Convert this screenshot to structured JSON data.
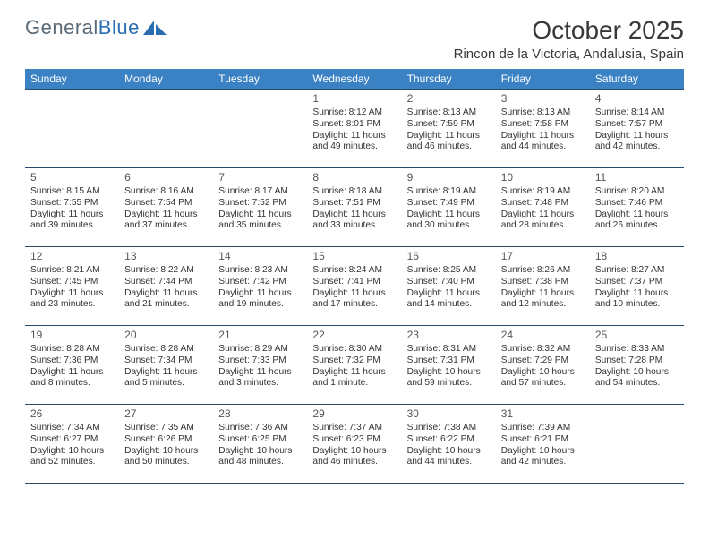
{
  "logo": {
    "text1": "General",
    "text2": "Blue"
  },
  "title": "October 2025",
  "location": "Rincon de la Victoria, Andalusia, Spain",
  "colors": {
    "header_bg": "#3b82c4",
    "header_text": "#ffffff",
    "row_separator": "#2a4a6a",
    "daynum": "#555555",
    "body_text": "#333333",
    "background": "#ffffff",
    "logo_grey": "#5a6a78",
    "logo_blue": "#2a6db0"
  },
  "weekday_headers": [
    "Sunday",
    "Monday",
    "Tuesday",
    "Wednesday",
    "Thursday",
    "Friday",
    "Saturday"
  ],
  "first_weekday_index": 3,
  "days": [
    {
      "n": 1,
      "sunrise": "8:12 AM",
      "sunset": "8:01 PM",
      "daylight": "11 hours and 49 minutes."
    },
    {
      "n": 2,
      "sunrise": "8:13 AM",
      "sunset": "7:59 PM",
      "daylight": "11 hours and 46 minutes."
    },
    {
      "n": 3,
      "sunrise": "8:13 AM",
      "sunset": "7:58 PM",
      "daylight": "11 hours and 44 minutes."
    },
    {
      "n": 4,
      "sunrise": "8:14 AM",
      "sunset": "7:57 PM",
      "daylight": "11 hours and 42 minutes."
    },
    {
      "n": 5,
      "sunrise": "8:15 AM",
      "sunset": "7:55 PM",
      "daylight": "11 hours and 39 minutes."
    },
    {
      "n": 6,
      "sunrise": "8:16 AM",
      "sunset": "7:54 PM",
      "daylight": "11 hours and 37 minutes."
    },
    {
      "n": 7,
      "sunrise": "8:17 AM",
      "sunset": "7:52 PM",
      "daylight": "11 hours and 35 minutes."
    },
    {
      "n": 8,
      "sunrise": "8:18 AM",
      "sunset": "7:51 PM",
      "daylight": "11 hours and 33 minutes."
    },
    {
      "n": 9,
      "sunrise": "8:19 AM",
      "sunset": "7:49 PM",
      "daylight": "11 hours and 30 minutes."
    },
    {
      "n": 10,
      "sunrise": "8:19 AM",
      "sunset": "7:48 PM",
      "daylight": "11 hours and 28 minutes."
    },
    {
      "n": 11,
      "sunrise": "8:20 AM",
      "sunset": "7:46 PM",
      "daylight": "11 hours and 26 minutes."
    },
    {
      "n": 12,
      "sunrise": "8:21 AM",
      "sunset": "7:45 PM",
      "daylight": "11 hours and 23 minutes."
    },
    {
      "n": 13,
      "sunrise": "8:22 AM",
      "sunset": "7:44 PM",
      "daylight": "11 hours and 21 minutes."
    },
    {
      "n": 14,
      "sunrise": "8:23 AM",
      "sunset": "7:42 PM",
      "daylight": "11 hours and 19 minutes."
    },
    {
      "n": 15,
      "sunrise": "8:24 AM",
      "sunset": "7:41 PM",
      "daylight": "11 hours and 17 minutes."
    },
    {
      "n": 16,
      "sunrise": "8:25 AM",
      "sunset": "7:40 PM",
      "daylight": "11 hours and 14 minutes."
    },
    {
      "n": 17,
      "sunrise": "8:26 AM",
      "sunset": "7:38 PM",
      "daylight": "11 hours and 12 minutes."
    },
    {
      "n": 18,
      "sunrise": "8:27 AM",
      "sunset": "7:37 PM",
      "daylight": "11 hours and 10 minutes."
    },
    {
      "n": 19,
      "sunrise": "8:28 AM",
      "sunset": "7:36 PM",
      "daylight": "11 hours and 8 minutes."
    },
    {
      "n": 20,
      "sunrise": "8:28 AM",
      "sunset": "7:34 PM",
      "daylight": "11 hours and 5 minutes."
    },
    {
      "n": 21,
      "sunrise": "8:29 AM",
      "sunset": "7:33 PM",
      "daylight": "11 hours and 3 minutes."
    },
    {
      "n": 22,
      "sunrise": "8:30 AM",
      "sunset": "7:32 PM",
      "daylight": "11 hours and 1 minute."
    },
    {
      "n": 23,
      "sunrise": "8:31 AM",
      "sunset": "7:31 PM",
      "daylight": "10 hours and 59 minutes."
    },
    {
      "n": 24,
      "sunrise": "8:32 AM",
      "sunset": "7:29 PM",
      "daylight": "10 hours and 57 minutes."
    },
    {
      "n": 25,
      "sunrise": "8:33 AM",
      "sunset": "7:28 PM",
      "daylight": "10 hours and 54 minutes."
    },
    {
      "n": 26,
      "sunrise": "7:34 AM",
      "sunset": "6:27 PM",
      "daylight": "10 hours and 52 minutes."
    },
    {
      "n": 27,
      "sunrise": "7:35 AM",
      "sunset": "6:26 PM",
      "daylight": "10 hours and 50 minutes."
    },
    {
      "n": 28,
      "sunrise": "7:36 AM",
      "sunset": "6:25 PM",
      "daylight": "10 hours and 48 minutes."
    },
    {
      "n": 29,
      "sunrise": "7:37 AM",
      "sunset": "6:23 PM",
      "daylight": "10 hours and 46 minutes."
    },
    {
      "n": 30,
      "sunrise": "7:38 AM",
      "sunset": "6:22 PM",
      "daylight": "10 hours and 44 minutes."
    },
    {
      "n": 31,
      "sunrise": "7:39 AM",
      "sunset": "6:21 PM",
      "daylight": "10 hours and 42 minutes."
    }
  ],
  "labels": {
    "sunrise": "Sunrise:",
    "sunset": "Sunset:",
    "daylight": "Daylight:"
  }
}
